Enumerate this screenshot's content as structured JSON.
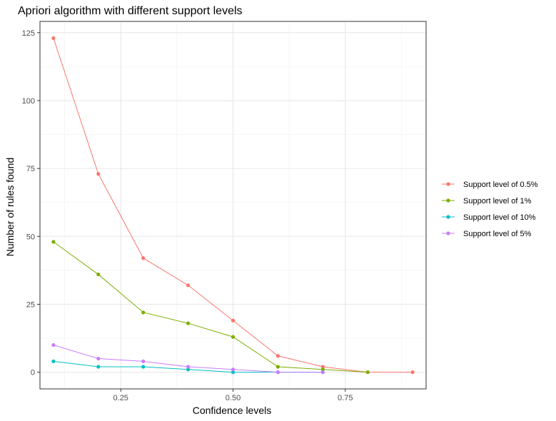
{
  "chart_data": {
    "type": "line",
    "title": "Apriori algorithm with different support levels",
    "xlabel": "Confidence levels",
    "ylabel": "Number of rules found",
    "xlim": [
      0.07,
      0.93
    ],
    "ylim": [
      -6.15,
      129.15
    ],
    "x_ticks": [
      0.25,
      0.5,
      0.75
    ],
    "x_tick_labels": [
      "0.25",
      "0.50",
      "0.75"
    ],
    "x_minor_ticks": [
      0.125,
      0.375,
      0.625,
      0.875
    ],
    "y_ticks": [
      0,
      25,
      50,
      75,
      100,
      125
    ],
    "y_tick_labels": [
      "0",
      "25",
      "50",
      "75",
      "100",
      "125"
    ],
    "y_minor_ticks": [
      12.5,
      37.5,
      62.5,
      87.5,
      112.5
    ],
    "grid": true,
    "legend_position": "right",
    "series": [
      {
        "name": "Support level of 0.5%",
        "color": "#F8766D",
        "x": [
          0.1,
          0.2,
          0.3,
          0.4,
          0.5,
          0.6,
          0.7,
          0.8,
          0.9
        ],
        "values": [
          123,
          73,
          42,
          32,
          19,
          6,
          2,
          0,
          0
        ]
      },
      {
        "name": "Support level of 1%",
        "color": "#7CAE00",
        "x": [
          0.1,
          0.2,
          0.3,
          0.4,
          0.5,
          0.6,
          0.7,
          0.8
        ],
        "values": [
          48,
          36,
          22,
          18,
          13,
          2,
          1,
          0
        ]
      },
      {
        "name": "Support level of 10%",
        "color": "#00BFC4",
        "x": [
          0.1,
          0.2,
          0.3,
          0.4,
          0.5,
          0.6,
          0.7
        ],
        "values": [
          4,
          2,
          2,
          1,
          0,
          0,
          0
        ]
      },
      {
        "name": "Support level of 5%",
        "color": "#C77CFF",
        "x": [
          0.1,
          0.2,
          0.3,
          0.4,
          0.5,
          0.6,
          0.7
        ],
        "values": [
          10,
          5,
          4,
          2,
          1,
          0,
          0
        ]
      }
    ]
  }
}
